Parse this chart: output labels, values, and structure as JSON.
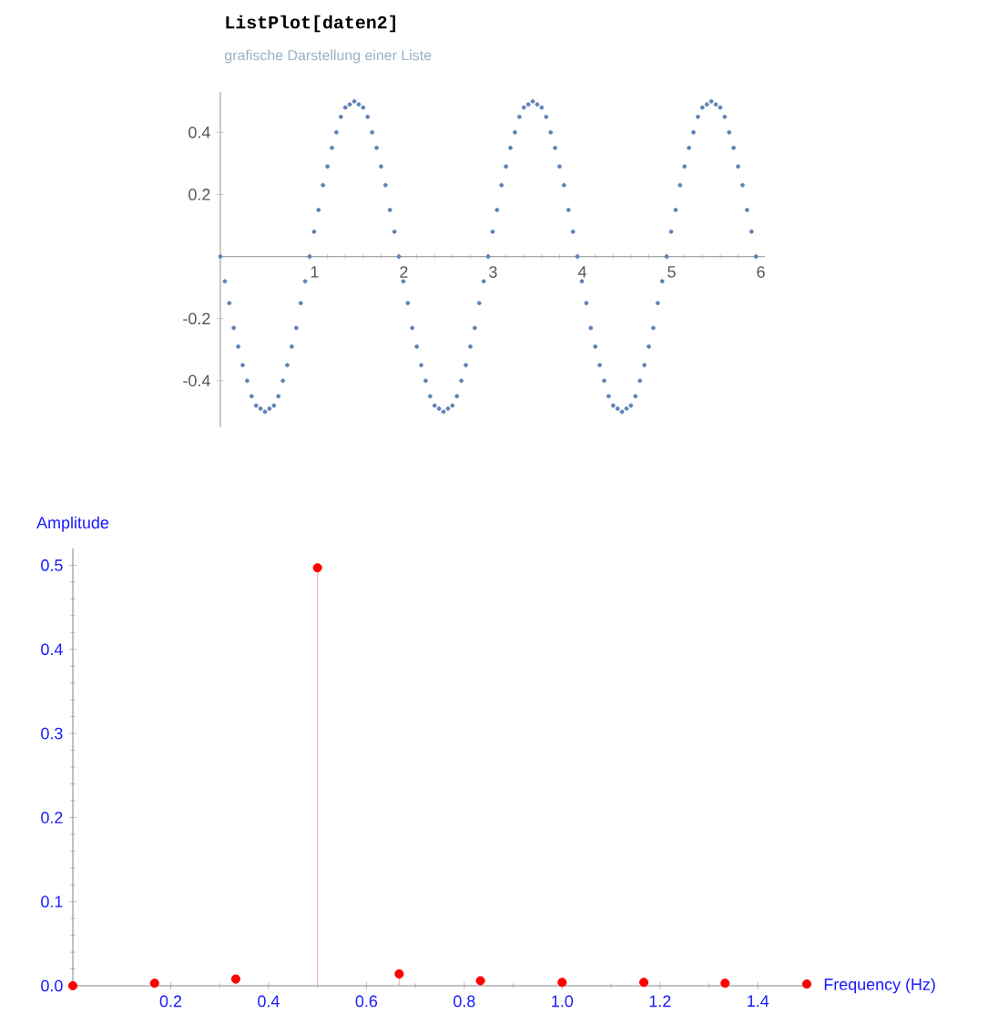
{
  "chart_data": [
    {
      "type": "scatter",
      "title": "ListPlot[daten2]",
      "subtitle": "grafische Darstellung einer Liste",
      "color": "#5e81b5",
      "marker": "circle",
      "x": [
        0,
        0.05,
        0.1,
        0.15,
        0.2,
        0.25,
        0.3,
        0.35,
        0.4,
        0.45,
        0.5,
        0.55,
        0.6,
        0.65,
        0.7,
        0.75,
        0.8,
        0.85,
        0.9,
        0.95,
        1,
        1.05,
        1.1,
        1.15,
        1.2,
        1.25,
        1.3,
        1.35,
        1.4,
        1.45,
        1.5,
        1.55,
        1.6,
        1.65,
        1.7,
        1.75,
        1.8,
        1.85,
        1.9,
        1.95,
        2,
        2.05,
        2.1,
        2.15,
        2.2,
        2.25,
        2.3,
        2.35,
        2.4,
        2.45,
        2.5,
        2.55,
        2.6,
        2.65,
        2.7,
        2.75,
        2.8,
        2.85,
        2.9,
        2.95,
        3,
        3.05,
        3.1,
        3.15,
        3.2,
        3.25,
        3.3,
        3.35,
        3.4,
        3.45,
        3.5,
        3.55,
        3.6,
        3.65,
        3.7,
        3.75,
        3.8,
        3.85,
        3.9,
        3.95,
        4,
        4.05,
        4.1,
        4.15,
        4.2,
        4.25,
        4.3,
        4.35,
        4.4,
        4.45,
        4.5,
        4.55,
        4.6,
        4.65,
        4.7,
        4.75,
        4.8,
        4.85,
        4.9,
        4.95,
        5,
        5.05,
        5.1,
        5.15,
        5.2,
        5.25,
        5.3,
        5.35,
        5.4,
        5.45,
        5.5,
        5.55,
        5.6,
        5.65,
        5.7,
        5.75,
        5.8,
        5.85,
        5.9,
        5.95,
        6
      ],
      "values": [
        0,
        -0.08,
        -0.15,
        -0.23,
        -0.29,
        -0.35,
        -0.4,
        -0.45,
        -0.48,
        -0.49,
        -0.5,
        -0.49,
        -0.48,
        -0.45,
        -0.4,
        -0.35,
        -0.29,
        -0.23,
        -0.15,
        -0.08,
        0,
        0.08,
        0.15,
        0.23,
        0.29,
        0.35,
        0.4,
        0.45,
        0.48,
        0.49,
        0.5,
        0.49,
        0.48,
        0.45,
        0.4,
        0.35,
        0.29,
        0.23,
        0.15,
        0.08,
        0,
        -0.08,
        -0.15,
        -0.23,
        -0.29,
        -0.35,
        -0.4,
        -0.45,
        -0.48,
        -0.49,
        -0.5,
        -0.49,
        -0.48,
        -0.45,
        -0.4,
        -0.35,
        -0.29,
        -0.23,
        -0.15,
        -0.08,
        0,
        0.08,
        0.15,
        0.23,
        0.29,
        0.35,
        0.4,
        0.45,
        0.48,
        0.49,
        0.5,
        0.49,
        0.48,
        0.45,
        0.4,
        0.35,
        0.29,
        0.23,
        0.15,
        0.08,
        0,
        -0.08,
        -0.15,
        -0.23,
        -0.29,
        -0.35,
        -0.4,
        -0.45,
        -0.48,
        -0.49,
        -0.5,
        -0.49,
        -0.48,
        -0.45,
        -0.4,
        -0.35,
        -0.29,
        -0.23,
        -0.15,
        -0.08,
        0,
        0.08,
        0.15,
        0.23,
        0.29,
        0.35,
        0.4,
        0.45,
        0.48,
        0.49,
        0.5,
        0.49,
        0.48,
        0.45,
        0.4,
        0.35,
        0.29,
        0.23,
        0.15,
        0.08,
        0
      ],
      "xlim": [
        0,
        6.1
      ],
      "ylim": [
        -0.55,
        0.53
      ],
      "xticks": [
        1,
        2,
        3,
        4,
        5,
        6
      ],
      "yticks": [
        -0.4,
        -0.2,
        0.2,
        0.4
      ]
    },
    {
      "type": "lollipop",
      "xlabel": "Frequency (Hz)",
      "ylabel": "Amplitude",
      "color": "#ff0000",
      "marker": "circle",
      "x": [
        0,
        0.167,
        0.333,
        0.5,
        0.667,
        0.833,
        1.0,
        1.167,
        1.333,
        1.5
      ],
      "values": [
        0,
        0.003,
        0.008,
        0.497,
        0.014,
        0.006,
        0.004,
        0.004,
        0.003,
        0.002
      ],
      "xlim": [
        0,
        1.5
      ],
      "ylim": [
        0,
        0.52
      ],
      "xticks": [
        0.2,
        0.4,
        0.6,
        0.8,
        {
          "value": 1,
          "label": "1.0"
        },
        1.2,
        1.4
      ],
      "yticks": [
        {
          "value": 0,
          "label": "0.0"
        },
        0.1,
        0.2,
        0.3,
        0.4,
        0.5
      ]
    }
  ]
}
